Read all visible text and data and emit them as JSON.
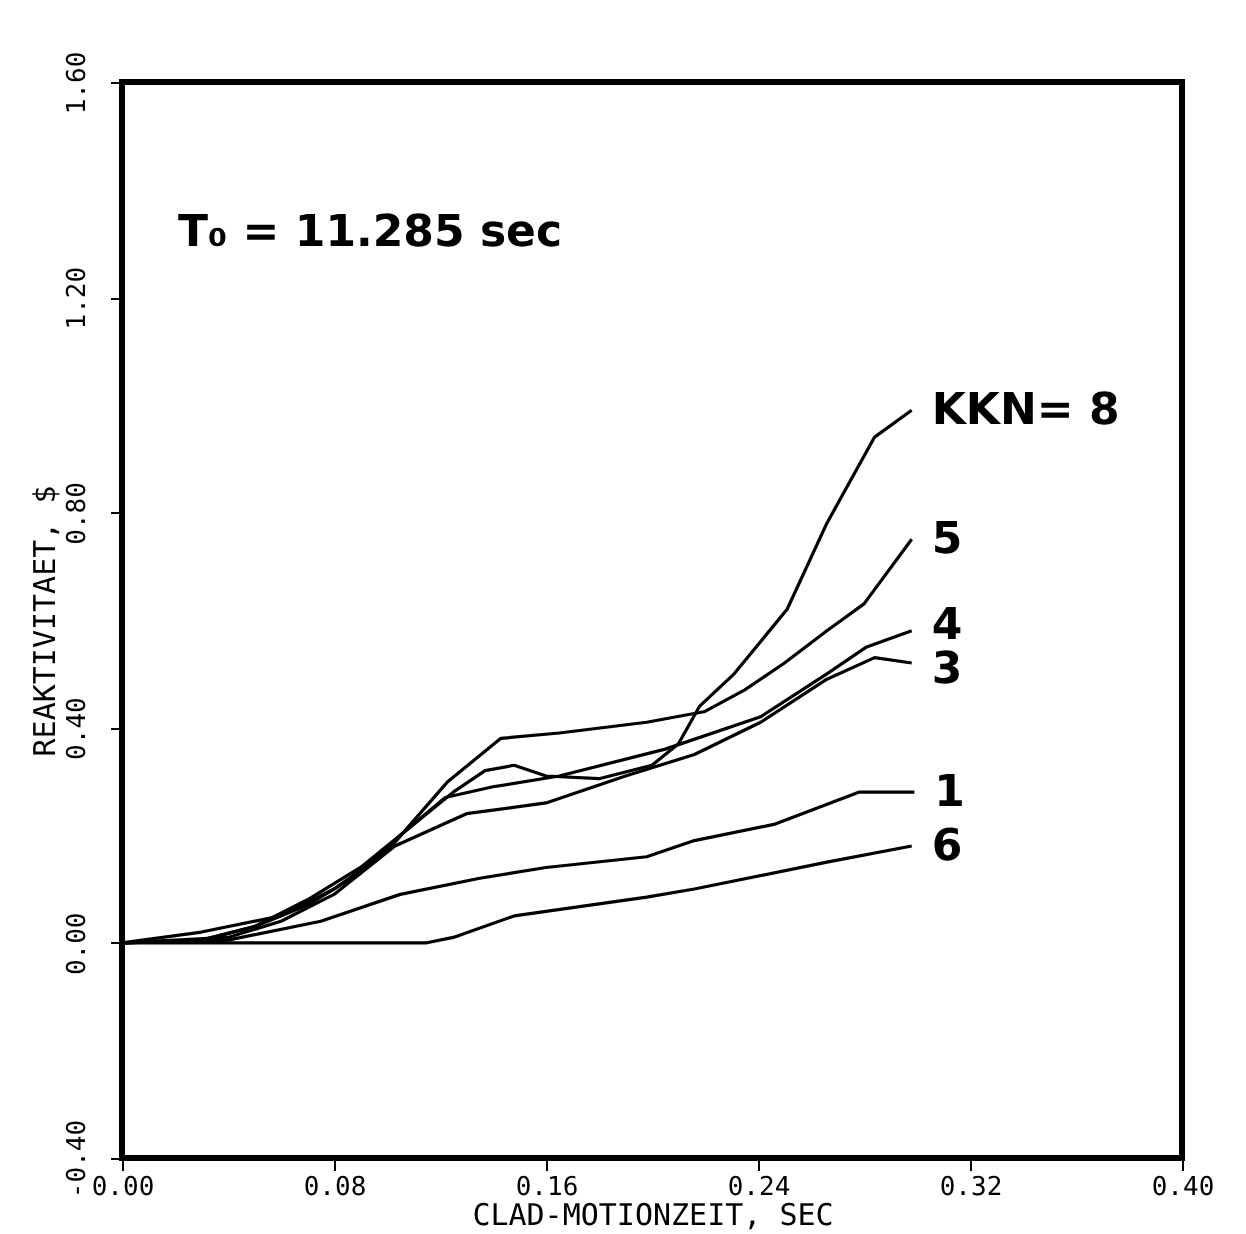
{
  "chart_data": {
    "type": "line",
    "xlabel": "CLAD-MOTIONZEIT, SEC",
    "ylabel": "REAKTIVITAET, $",
    "annotations": [
      "T₀ = 11.285 sec"
    ],
    "xlim": [
      0,
      0.4
    ],
    "xticks": [
      {
        "value": 0,
        "label": "0.00"
      },
      {
        "value": 0.08,
        "label": "0.08"
      },
      {
        "value": 0.16,
        "label": "0.16"
      },
      {
        "value": 0.24,
        "label": "0.24"
      },
      {
        "value": 0.32,
        "label": "0.32"
      },
      {
        "value": 0.4,
        "label": "0.40"
      }
    ],
    "ylim": [
      -0.4,
      1.6
    ],
    "yticks": [
      {
        "value": -0.4,
        "label": "-0.40"
      },
      {
        "value": 0,
        "label": "0.00"
      },
      {
        "value": 0.4,
        "label": "0.40"
      },
      {
        "value": 0.8,
        "label": "0.80"
      },
      {
        "value": 1.2,
        "label": "1.20"
      },
      {
        "value": 1.6,
        "label": "1.60"
      }
    ],
    "grid": false,
    "legend": false,
    "marker": "none",
    "line_style": "solid",
    "series": [
      {
        "name": "KKN= 8",
        "color": "#000000",
        "x": [
          0,
          0.03,
          0.05,
          0.07,
          0.09,
          0.11,
          0.125,
          0.137,
          0.148,
          0.16,
          0.18,
          0.2,
          0.21,
          0.218,
          0.231,
          0.251,
          0.266,
          0.284,
          0.298
        ],
        "values": [
          0,
          0.005,
          0.03,
          0.08,
          0.14,
          0.22,
          0.28,
          0.32,
          0.33,
          0.31,
          0.305,
          0.33,
          0.37,
          0.44,
          0.5,
          0.62,
          0.78,
          0.94,
          0.99
        ]
      },
      {
        "name": "5",
        "color": "#000000",
        "x": [
          0,
          0.03,
          0.06,
          0.08,
          0.1,
          0.123,
          0.143,
          0.165,
          0.198,
          0.22,
          0.235,
          0.25,
          0.266,
          0.28,
          0.298
        ],
        "values": [
          0,
          0.02,
          0.05,
          0.1,
          0.17,
          0.3,
          0.38,
          0.39,
          0.41,
          0.43,
          0.47,
          0.52,
          0.58,
          0.63,
          0.75
        ]
      },
      {
        "name": "4",
        "color": "#000000",
        "x": [
          0,
          0.03,
          0.05,
          0.07,
          0.09,
          0.105,
          0.122,
          0.14,
          0.165,
          0.205,
          0.241,
          0.266,
          0.281,
          0.298
        ],
        "values": [
          0,
          0.005,
          0.03,
          0.07,
          0.13,
          0.2,
          0.27,
          0.29,
          0.31,
          0.36,
          0.42,
          0.5,
          0.55,
          0.58
        ]
      },
      {
        "name": "3",
        "color": "#000000",
        "x": [
          0,
          0.04,
          0.06,
          0.08,
          0.103,
          0.13,
          0.16,
          0.19,
          0.216,
          0.241,
          0.266,
          0.284,
          0.298
        ],
        "values": [
          0,
          0.01,
          0.04,
          0.09,
          0.18,
          0.24,
          0.26,
          0.31,
          0.35,
          0.41,
          0.49,
          0.53,
          0.52
        ]
      },
      {
        "name": "1",
        "color": "#000000",
        "x": [
          0,
          0.04,
          0.075,
          0.105,
          0.135,
          0.16,
          0.198,
          0.216,
          0.246,
          0.278,
          0.299
        ],
        "values": [
          0,
          0.005,
          0.04,
          0.09,
          0.12,
          0.14,
          0.16,
          0.19,
          0.22,
          0.28,
          0.28
        ]
      },
      {
        "name": "6",
        "color": "#000000",
        "x": [
          0,
          0.115,
          0.125,
          0.148,
          0.198,
          0.216,
          0.266,
          0.298
        ],
        "values": [
          0,
          0,
          0.01,
          0.05,
          0.085,
          0.1,
          0.15,
          0.18
        ]
      }
    ]
  }
}
